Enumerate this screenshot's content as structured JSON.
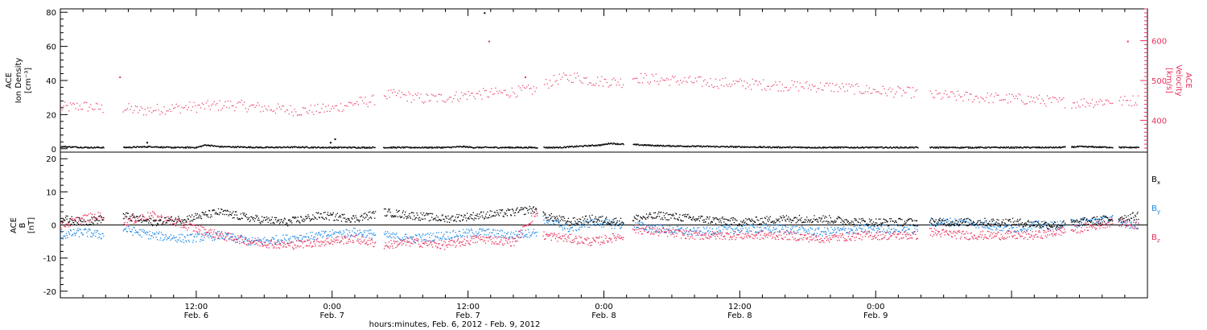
{
  "colors": {
    "density": "#000000",
    "velocity": "#e8305a",
    "bx": "#000000",
    "by": "#1e88e5",
    "bz": "#e8305a",
    "axis": "#000000"
  },
  "chart_data": [
    {
      "type": "scatter",
      "panel": "top",
      "ylabel_left": [
        "ACE",
        "Ion Density",
        "[cm⁻³]"
      ],
      "ylabel_right": [
        "ACE",
        "Velocity",
        "[km/s]"
      ],
      "xlim_hours": [
        0,
        96
      ],
      "ylim_left": [
        -2,
        82
      ],
      "yticks_left": [
        0,
        20,
        40,
        60,
        80
      ],
      "ylim_right": [
        320,
        680
      ],
      "yticks_right": [
        400,
        500,
        600
      ],
      "series": [
        {
          "key": "density",
          "color": "#000000",
          "x": [
            0,
            2.5,
            5.5,
            8,
            9.5,
            12,
            12.8,
            14,
            18,
            21,
            23,
            25,
            27,
            30,
            34,
            35.5,
            36.5,
            40,
            44,
            47.8,
            48.5,
            49.4,
            53,
            58,
            62,
            66,
            70,
            74,
            80,
            86,
            88,
            90,
            92,
            94,
            95.2
          ],
          "y": [
            1.5,
            1,
            1,
            1.5,
            1,
            1,
            2.5,
            1.5,
            1,
            1.2,
            1,
            1,
            1,
            1,
            1,
            1.5,
            1,
            1,
            1,
            2.5,
            3.5,
            3,
            2,
            1.5,
            1.2,
            1,
            1,
            1,
            1,
            1,
            1,
            1.5,
            1.2,
            1,
            1
          ],
          "gaps_hours": [
            [
              3.8,
              5.5
            ],
            [
              27.8,
              28.5
            ],
            [
              42.1,
              42.6
            ],
            [
              49.7,
              50.5
            ],
            [
              75.7,
              76.7
            ],
            [
              88.7,
              89.2
            ],
            [
              92.9,
              93.4
            ]
          ],
          "outliers": [
            [
              37.4,
              80
            ],
            [
              23.8,
              4
            ],
            [
              24.2,
              6
            ],
            [
              7.6,
              4
            ]
          ]
        },
        {
          "key": "velocity",
          "color": "#e8305a",
          "x": [
            0,
            2,
            3.7,
            5.5,
            7,
            9,
            12,
            15,
            18,
            21,
            24,
            26,
            27.5,
            28.5,
            30,
            32,
            34,
            36,
            39,
            42,
            42.6,
            44,
            45.5,
            47,
            49.7,
            50.5,
            52,
            56,
            60,
            64,
            68,
            72,
            75.6,
            76.7,
            80,
            84,
            86,
            88,
            90,
            92.8,
            93.4,
            95.2
          ],
          "y": [
            432,
            437,
            430,
            432,
            425,
            430,
            435,
            440,
            432,
            425,
            430,
            445,
            450,
            465,
            464,
            455,
            458,
            465,
            470,
            478,
            490,
            505,
            510,
            500,
            497,
            510,
            505,
            498,
            493,
            488,
            485,
            475,
            470,
            464,
            460,
            455,
            453,
            447,
            445,
            450,
            448,
            452
          ],
          "gaps_hours": [
            [
              3.8,
              5.5
            ],
            [
              27.8,
              28.5
            ],
            [
              42.1,
              42.6
            ],
            [
              49.7,
              50.5
            ],
            [
              75.7,
              76.7
            ],
            [
              88.7,
              89.2
            ],
            [
              92.9,
              93.4
            ]
          ],
          "outliers": [
            [
              37.8,
              600
            ],
            [
              41,
              510
            ],
            [
              94.2,
              600
            ],
            [
              5.2,
              510
            ]
          ]
        }
      ]
    },
    {
      "type": "scatter",
      "panel": "bottom",
      "ylabel_left": [
        "ACE",
        "B",
        "[nT]"
      ],
      "xlim_hours": [
        0,
        96
      ],
      "ylim": [
        -22,
        22
      ],
      "yticks": [
        -20,
        -10,
        0,
        10,
        20
      ],
      "zero_line": true,
      "legend_position": "right",
      "series": [
        {
          "key": "bx",
          "name": "Bx",
          "color": "#000000",
          "x": [
            0,
            2,
            3.7,
            5.5,
            8,
            11,
            14,
            17,
            20,
            23,
            26,
            28.5,
            31,
            34,
            37,
            40,
            42,
            42.6,
            45,
            47,
            49.7,
            50.5,
            53,
            56,
            60,
            64,
            67,
            71,
            75.6,
            76.7,
            80,
            84,
            86,
            88,
            90,
            92.8,
            93.4,
            95.2
          ],
          "y": [
            2,
            1,
            2,
            3,
            1,
            2,
            4,
            2,
            1,
            3,
            2,
            4,
            3,
            2,
            3,
            4,
            5,
            3,
            1,
            2,
            1,
            2,
            3,
            2,
            1,
            2,
            2,
            1,
            1,
            1,
            1,
            1,
            0.5,
            0,
            1,
            2,
            2,
            3
          ],
          "gaps_hours": [
            [
              3.8,
              5.5
            ],
            [
              27.8,
              28.5
            ],
            [
              42.1,
              42.6
            ],
            [
              49.7,
              50.5
            ],
            [
              75.7,
              76.7
            ],
            [
              88.7,
              89.2
            ],
            [
              92.9,
              93.4
            ]
          ]
        },
        {
          "key": "by",
          "name": "By",
          "color": "#1e88e5",
          "x": [
            0,
            2,
            3.7,
            5.5,
            8,
            11,
            14,
            17,
            20,
            23,
            26,
            28.5,
            31,
            34,
            37,
            40,
            42,
            42.6,
            45,
            47,
            49.7,
            50.5,
            53,
            56,
            60,
            64,
            67,
            71,
            75.6,
            76.7,
            80,
            84,
            86,
            88,
            90,
            92.8,
            93.4,
            95.2
          ],
          "y": [
            -3,
            -2,
            -3,
            -1,
            -3,
            -4,
            -3,
            -5,
            -4,
            -3,
            -2,
            -3,
            -4,
            -3,
            -2,
            -3,
            -2,
            2,
            -1,
            1,
            0,
            0,
            -1,
            -2,
            -1,
            -1,
            -2,
            -1,
            -1,
            1,
            1,
            -1,
            0,
            0,
            1,
            2,
            1,
            0
          ],
          "gaps_hours": [
            [
              3.8,
              5.5
            ],
            [
              27.8,
              28.5
            ],
            [
              42.1,
              42.6
            ],
            [
              49.7,
              50.5
            ],
            [
              75.7,
              76.7
            ],
            [
              88.7,
              89.2
            ],
            [
              92.9,
              93.4
            ]
          ]
        },
        {
          "key": "bz",
          "name": "Bz",
          "color": "#e8305a",
          "x": [
            0,
            2,
            3.7,
            5.5,
            8,
            11,
            14,
            17,
            20,
            23,
            26,
            28.5,
            31,
            34,
            37,
            40,
            42,
            42.6,
            45,
            47,
            49.7,
            50.5,
            53,
            56,
            60,
            64,
            67,
            71,
            75.6,
            76.7,
            80,
            84,
            86,
            88,
            90,
            92.8,
            93.4,
            95.2
          ],
          "y": [
            0,
            2,
            3,
            1,
            3,
            0,
            -3,
            -5,
            -6,
            -5,
            -4,
            -6,
            -5,
            -6,
            -4,
            -5,
            4,
            -3,
            -4,
            -5,
            -3,
            -1,
            -2,
            -3,
            -3,
            -3,
            -4,
            -3,
            -3,
            -2,
            -3,
            -3,
            -3,
            -2,
            -1,
            1,
            1,
            0
          ],
          "gaps_hours": [
            [
              3.8,
              5.5
            ],
            [
              27.8,
              28.5
            ],
            [
              42.1,
              42.6
            ],
            [
              49.7,
              50.5
            ],
            [
              75.7,
              76.7
            ],
            [
              88.7,
              89.2
            ],
            [
              92.9,
              93.4
            ]
          ]
        }
      ]
    }
  ],
  "x_axis": {
    "tick_labels": [
      {
        "hour": 12,
        "time": "12:00",
        "date": "Feb. 6"
      },
      {
        "hour": 24,
        "time": "0:00",
        "date": "Feb. 7"
      },
      {
        "hour": 36,
        "time": "12:00",
        "date": "Feb. 7"
      },
      {
        "hour": 48,
        "time": "0:00",
        "date": "Feb. 8"
      },
      {
        "hour": 60,
        "time": "12:00",
        "date": "Feb. 8"
      },
      {
        "hour": 72,
        "time": "0:00",
        "date": "Feb. 9"
      }
    ],
    "xlabel": "hours:minutes, Feb.  6, 2012 - Feb.  9, 2012"
  },
  "legend": [
    {
      "base": "B",
      "sub": "x",
      "color": "#000000"
    },
    {
      "base": "B",
      "sub": "y",
      "color": "#1e88e5"
    },
    {
      "base": "B",
      "sub": "z",
      "color": "#e8305a"
    }
  ]
}
